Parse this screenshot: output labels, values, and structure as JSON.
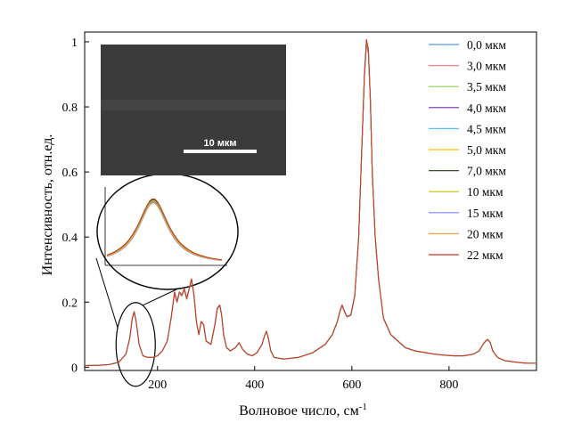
{
  "chart_data": {
    "type": "line",
    "xlabel": "Волновое число, см",
    "xlabel_sup": "-1",
    "ylabel": "Интенсивность, отн.ед.",
    "xlim": [
      50,
      980
    ],
    "ylim": [
      -0.01,
      1.03
    ],
    "xticks": [
      "200",
      "400",
      "600",
      "800"
    ],
    "xtick_values": [
      200,
      400,
      600,
      800
    ],
    "yticks": [
      "0",
      "0.2",
      "0.4",
      "0.6",
      "0.8",
      "1"
    ],
    "ytick_values": [
      0,
      0.2,
      0.4,
      0.6,
      0.8,
      1
    ],
    "grid": false,
    "legend_position": "top-right",
    "series": [
      {
        "name": "0,0 мкм",
        "color": "#5b9bd5"
      },
      {
        "name": "3,0 мкм",
        "color": "#ff7f7f"
      },
      {
        "name": "3,5 мкм",
        "color": "#92d050"
      },
      {
        "name": "4,0 мкм",
        "color": "#7030a0"
      },
      {
        "name": "4,5 мкм",
        "color": "#4fc3f7"
      },
      {
        "name": "5,0 мкм",
        "color": "#ffc000"
      },
      {
        "name": "7,0 мкм",
        "color": "#375623"
      },
      {
        "name": "10  мкм",
        "color": "#c0c000"
      },
      {
        "name": "15  мкм",
        "color": "#8080ff"
      },
      {
        "name": "20  мкм",
        "color": "#ffa040"
      },
      {
        "name": "22  мкм",
        "color": "#c0392b"
      }
    ],
    "spectrum_x": [
      50,
      80,
      100,
      120,
      135,
      143,
      148,
      152,
      156,
      162,
      170,
      180,
      190,
      200,
      210,
      220,
      228,
      235,
      240,
      245,
      250,
      255,
      260,
      265,
      270,
      275,
      280,
      285,
      290,
      295,
      300,
      310,
      318,
      323,
      328,
      332,
      336,
      342,
      350,
      360,
      368,
      375,
      385,
      395,
      405,
      415,
      420,
      424,
      428,
      433,
      440,
      460,
      490,
      520,
      545,
      560,
      570,
      576,
      580,
      585,
      590,
      598,
      606,
      614,
      620,
      626,
      630,
      634,
      638,
      642,
      648,
      655,
      665,
      680,
      695,
      710,
      730,
      750,
      770,
      790,
      810,
      830,
      850,
      862,
      870,
      875,
      880,
      885,
      890,
      900,
      915,
      940,
      960,
      980
    ],
    "spectrum_y": [
      0.005,
      0.006,
      0.008,
      0.015,
      0.04,
      0.09,
      0.15,
      0.17,
      0.14,
      0.07,
      0.035,
      0.03,
      0.03,
      0.035,
      0.05,
      0.08,
      0.15,
      0.23,
      0.2,
      0.23,
      0.22,
      0.24,
      0.21,
      0.24,
      0.27,
      0.22,
      0.14,
      0.1,
      0.14,
      0.13,
      0.08,
      0.07,
      0.13,
      0.18,
      0.19,
      0.16,
      0.1,
      0.06,
      0.05,
      0.06,
      0.075,
      0.055,
      0.04,
      0.035,
      0.045,
      0.07,
      0.095,
      0.11,
      0.09,
      0.05,
      0.03,
      0.025,
      0.03,
      0.045,
      0.07,
      0.1,
      0.14,
      0.175,
      0.19,
      0.17,
      0.155,
      0.16,
      0.22,
      0.4,
      0.65,
      0.9,
      1.0,
      0.97,
      0.82,
      0.6,
      0.4,
      0.27,
      0.15,
      0.1,
      0.08,
      0.06,
      0.05,
      0.045,
      0.04,
      0.037,
      0.035,
      0.035,
      0.04,
      0.05,
      0.07,
      0.08,
      0.085,
      0.075,
      0.05,
      0.03,
      0.02,
      0.015,
      0.012,
      0.012
    ]
  },
  "inset_image": {
    "scalebar_label": "10 мкм"
  }
}
